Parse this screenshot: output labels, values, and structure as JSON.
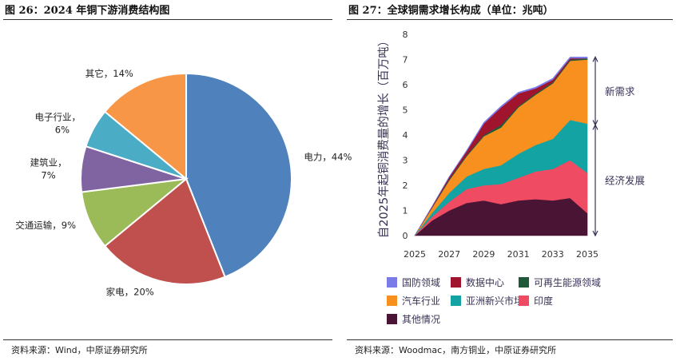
{
  "left": {
    "title": "图 26：2024 年铜下游消费结构图",
    "source": "资料来源：Wind，中原证券研究所"
  },
  "right": {
    "title": "图 27：全球铜需求增长构成（单位：兆吨）",
    "source": "资料来源：Woodmac，南方铜业，中原证券研究所"
  },
  "chart_data": [
    {
      "type": "pie",
      "title": "",
      "slices": [
        {
          "label": "电力，44%",
          "value": 44,
          "color": "#4f81bd"
        },
        {
          "label": "家电，20%",
          "value": 20,
          "color": "#c0504d"
        },
        {
          "label": "交通运输，9%",
          "value": 9,
          "color": "#9bbb59"
        },
        {
          "label": "建筑业，7%",
          "value": 7,
          "color": "#8064a2"
        },
        {
          "label": "电子行业，6%",
          "value": 6,
          "color": "#4bacc6"
        },
        {
          "label": "其它，14%",
          "value": 14,
          "color": "#f79646"
        }
      ]
    },
    {
      "type": "area",
      "title": "",
      "ylabel": "自2025年起铜消费量的增长（百万吨）",
      "x": [
        2025,
        2026,
        2027,
        2028,
        2029,
        2030,
        2031,
        2032,
        2033,
        2034,
        2035
      ],
      "xticks": [
        "2025",
        "2027",
        "2029",
        "2031",
        "2033",
        "2035"
      ],
      "yticks": [
        "0",
        "1",
        "2",
        "3",
        "4",
        "5",
        "6",
        "7",
        "8"
      ],
      "ylim": [
        0,
        8
      ],
      "series": [
        {
          "name": "其他情况",
          "color": "#4a1535",
          "values": [
            0,
            0.6,
            1.0,
            1.3,
            1.4,
            1.25,
            1.4,
            1.45,
            1.4,
            1.5,
            0.9
          ]
        },
        {
          "name": "印度",
          "color": "#ef4b63",
          "values": [
            0,
            0.15,
            0.35,
            0.55,
            0.6,
            0.8,
            0.9,
            1.1,
            1.25,
            1.5,
            1.6
          ]
        },
        {
          "name": "亚洲新兴市场",
          "color": "#14a3a3",
          "values": [
            0,
            0.15,
            0.35,
            0.5,
            0.65,
            0.75,
            0.95,
            1.05,
            1.2,
            1.6,
            1.95
          ]
        },
        {
          "name": "汽车行业",
          "color": "#f7901e",
          "values": [
            0,
            0.2,
            0.5,
            0.8,
            1.3,
            1.5,
            1.85,
            2.0,
            2.2,
            2.35,
            2.55
          ]
        },
        {
          "name": "可再生能源领域",
          "color": "#1e5a3a",
          "values": [
            0,
            0.02,
            0.05,
            0.05,
            0.05,
            0.1,
            0.05,
            0.05,
            0.05,
            0.05,
            0.05
          ]
        },
        {
          "name": "数据中心",
          "color": "#a0142e",
          "values": [
            0,
            0.03,
            0.08,
            0.15,
            0.45,
            0.7,
            0.5,
            0.2,
            0.1,
            0.05,
            0.0
          ]
        },
        {
          "name": "国防领域",
          "color": "#7b7be8",
          "values": [
            0,
            0.01,
            0.02,
            0.03,
            0.05,
            0.05,
            0.05,
            0.05,
            0.05,
            0.05,
            0.05
          ]
        }
      ],
      "annotations": [
        {
          "text": "新需求",
          "range": [
            4.4,
            7.1
          ]
        },
        {
          "text": "经济发展",
          "range": [
            0,
            4.4
          ]
        }
      ],
      "legend": [
        "国防领域",
        "数据中心",
        "可再生能源领域",
        "汽车行业",
        "亚洲新兴市场",
        "印度",
        "其他情况"
      ]
    }
  ]
}
